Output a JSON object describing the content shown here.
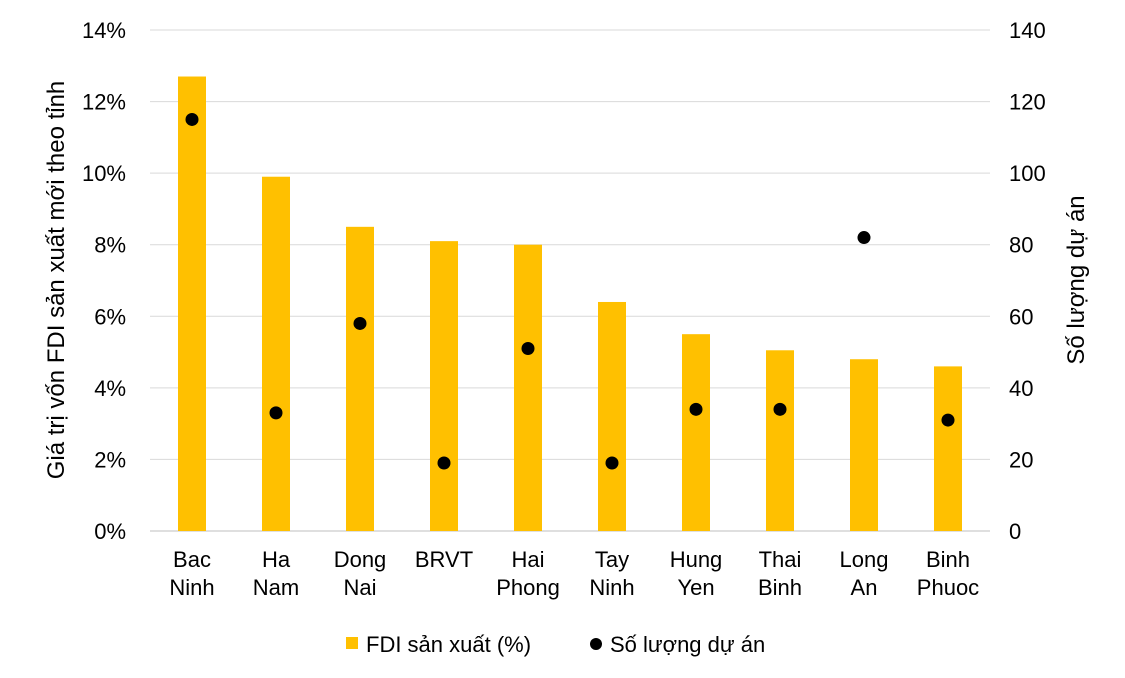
{
  "chart_data": {
    "type": "bar",
    "categories": [
      [
        "Bac",
        "Ninh"
      ],
      [
        "Ha",
        "Nam"
      ],
      [
        "Dong",
        "Nai"
      ],
      [
        "BRVT"
      ],
      [
        "Hai",
        "Phong"
      ],
      [
        "Tay",
        "Ninh"
      ],
      [
        "Hung",
        "Yen"
      ],
      [
        "Thai",
        "Binh"
      ],
      [
        "Long",
        "An"
      ],
      [
        "Binh",
        "Phuoc"
      ]
    ],
    "series": [
      {
        "name": "FDI sản xuất (%)",
        "type": "bar",
        "axis": "left",
        "color": "#FFC000",
        "values": [
          12.7,
          9.9,
          8.5,
          8.1,
          8.0,
          6.4,
          5.5,
          5.05,
          4.8,
          4.6
        ]
      },
      {
        "name": "Số lượng dự án",
        "type": "scatter",
        "axis": "right",
        "color": "#000000",
        "values": [
          115,
          33,
          58,
          19,
          51,
          19,
          34,
          34,
          82,
          31
        ]
      }
    ],
    "y_left": {
      "label": "Giá trị vốn FDI sản xuất mới theo tỉnh",
      "ticks": [
        "0%",
        "2%",
        "4%",
        "6%",
        "8%",
        "10%",
        "12%",
        "14%"
      ],
      "ylim": [
        0,
        14
      ]
    },
    "y_right": {
      "label": "Số lượng dự án",
      "ticks": [
        "0",
        "20",
        "40",
        "60",
        "80",
        "100",
        "120",
        "140"
      ],
      "ylim": [
        0,
        140
      ]
    },
    "grid": true,
    "legend_position": "bottom"
  }
}
